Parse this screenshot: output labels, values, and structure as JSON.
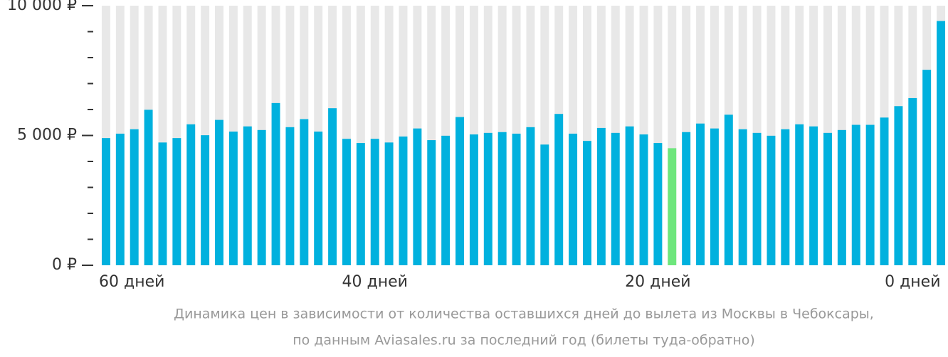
{
  "chart_data": {
    "type": "bar",
    "caption": [
      "Динамика цен в зависимости от количества оставшихся дней до вылета из Москвы в Чебоксары,",
      "по данным Aviasales.ru за последний год (билеты туда-обратно)"
    ],
    "categories": [
      "60 дней",
      null,
      null,
      null,
      null,
      null,
      null,
      null,
      null,
      null,
      null,
      null,
      null,
      null,
      null,
      null,
      null,
      null,
      null,
      "40 дней",
      null,
      null,
      null,
      null,
      null,
      null,
      null,
      null,
      null,
      null,
      null,
      null,
      null,
      null,
      null,
      null,
      null,
      null,
      null,
      "20 дней",
      null,
      null,
      null,
      null,
      null,
      null,
      null,
      null,
      null,
      null,
      null,
      null,
      null,
      null,
      null,
      null,
      null,
      "0 дней",
      null,
      null
    ],
    "values": [
      4900,
      5070,
      5240,
      5990,
      4730,
      4900,
      5430,
      5010,
      5600,
      5150,
      5350,
      5210,
      6250,
      5320,
      5630,
      5150,
      6050,
      4870,
      4710,
      4870,
      4730,
      4960,
      5270,
      4820,
      4990,
      5710,
      5040,
      5100,
      5130,
      5070,
      5320,
      4650,
      5830,
      5070,
      4790,
      5290,
      5100,
      5350,
      5040,
      4710,
      4510,
      5130,
      5460,
      5270,
      5800,
      5240,
      5100,
      4990,
      5240,
      5430,
      5350,
      5100,
      5210,
      5410,
      5410,
      5690,
      6130,
      6440,
      7530,
      9410
    ],
    "color": "#00b1de",
    "highlight_index": 40,
    "highlight_color": "#6ee67c",
    "background_color": "#e8e8e8",
    "ylim": [
      0,
      10000
    ],
    "yticks": [
      {
        "value": 0,
        "label": "0 ₽"
      },
      {
        "value": 5000,
        "label": "5 000 ₽"
      },
      {
        "value": 10000,
        "label": "10 000 ₽"
      }
    ],
    "minor_yticks": [
      1000,
      2000,
      3000,
      4000,
      6000,
      7000,
      8000,
      9000
    ]
  }
}
